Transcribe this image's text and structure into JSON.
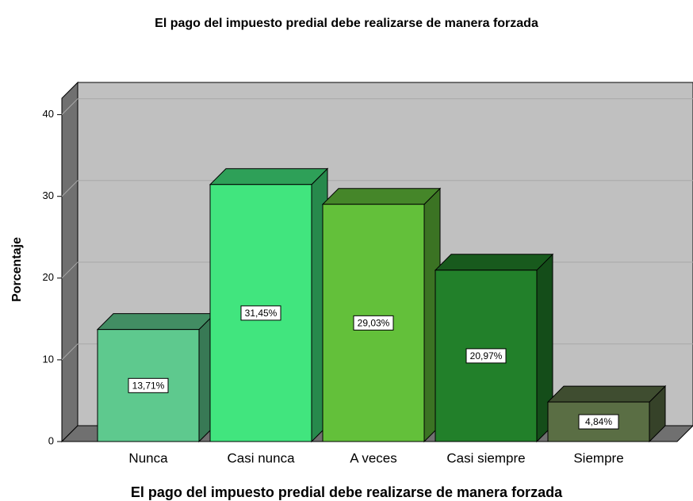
{
  "chart_data": {
    "type": "bar3d",
    "title": "El pago del impuesto predial debe realizarse de manera forzada",
    "xlabel": "El pago del impuesto predial debe realizarse de manera forzada",
    "ylabel": "Porcentaje",
    "categories": [
      "Nunca",
      "Casi nunca",
      "A veces",
      "Casi siempre",
      "Siempre"
    ],
    "values": [
      13.71,
      31.45,
      29.03,
      20.97,
      4.84
    ],
    "value_labels": [
      "13,71%",
      "31,45%",
      "29,03%",
      "20,97%",
      "4,84%"
    ],
    "colors": [
      "#5ec98e",
      "#41e57e",
      "#63c03a",
      "#22802a",
      "#5a6e44"
    ],
    "ylim": [
      0,
      42
    ],
    "yticks": [
      0,
      10,
      20,
      30,
      40
    ],
    "grid": true
  }
}
